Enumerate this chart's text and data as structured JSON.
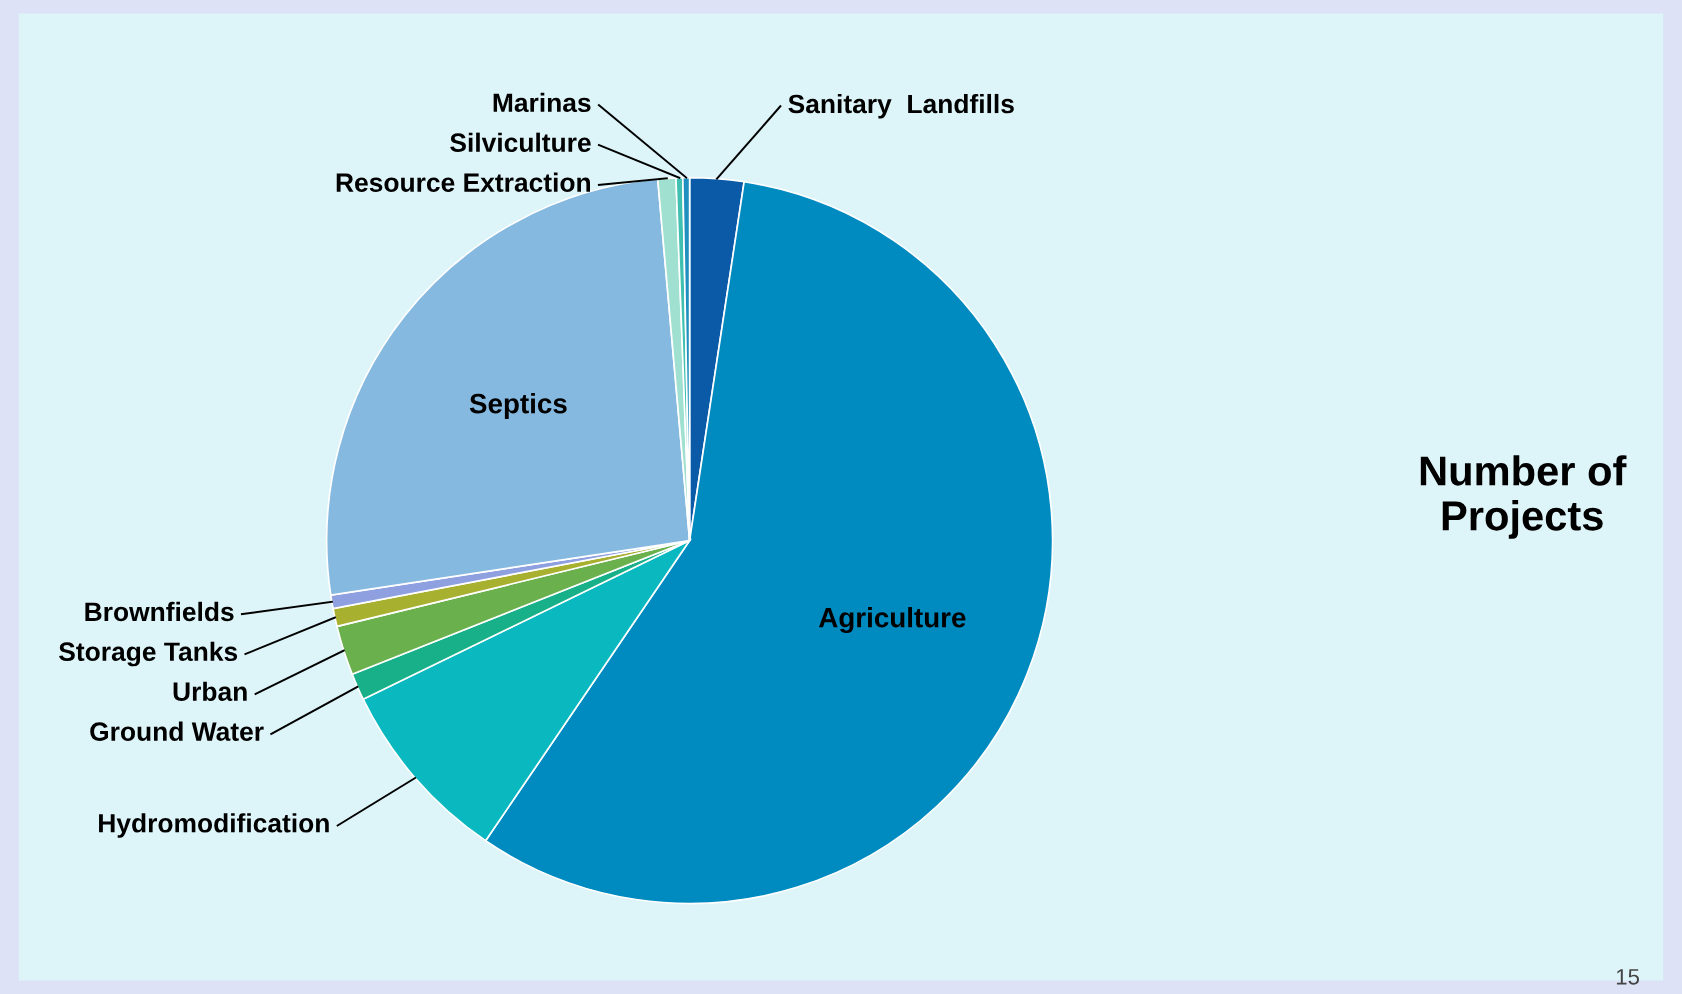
{
  "chart_data": {
    "type": "pie",
    "title": "Number of Projects",
    "categories": [
      "Sanitary  Landfills",
      "Agriculture",
      "Hydromodification",
      "Ground Water",
      "Urban",
      "Storage Tanks",
      "Brownfields",
      "Septics",
      "Resource Extraction",
      "Silviculture",
      "Marinas"
    ],
    "values": [
      2.4,
      57.1,
      8.3,
      1.2,
      2.2,
      0.8,
      0.6,
      26.0,
      0.8,
      0.3,
      0.3
    ],
    "colors": [
      "#0a5aa8",
      "#008bc0",
      "#0ab8c0",
      "#18b088",
      "#6ab04c",
      "#a8b030",
      "#8fa0e0",
      "#85b9e0",
      "#a0e0d0",
      "#40c0b0",
      "#2090c0"
    ],
    "annotations": [
      "15"
    ]
  }
}
